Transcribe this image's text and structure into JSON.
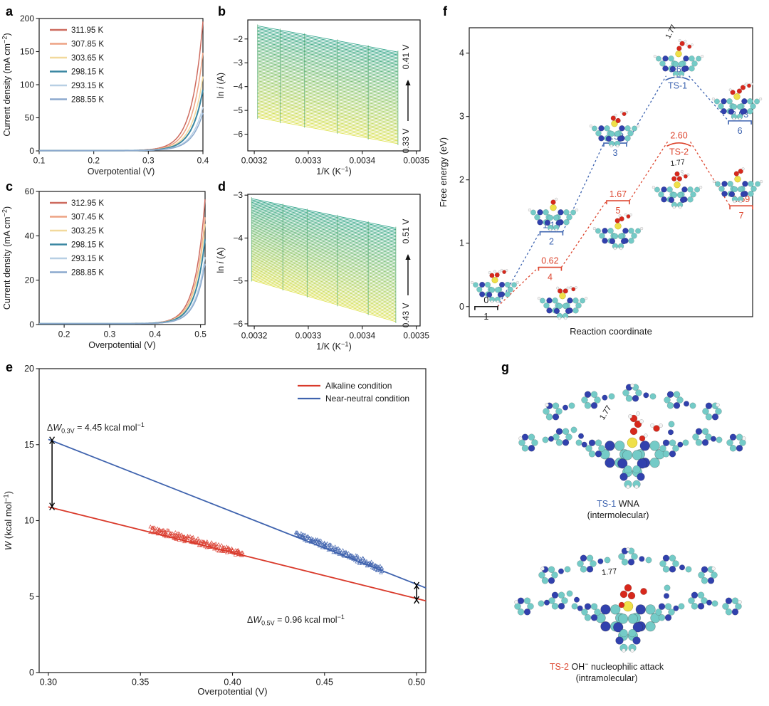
{
  "panels": {
    "a": "a",
    "b": "b",
    "c": "c",
    "d": "d",
    "e": "e",
    "f": "f",
    "g": "g"
  },
  "colors": {
    "axis": "#1a1a1a",
    "e_red": "#d93a2b",
    "e_blue": "#3f63ae",
    "f_blue": "#3e64b0",
    "f_red": "#dd4730",
    "f_black": "#1a1a1a",
    "atom_C": "#74cbc7",
    "atom_N": "#3141ad",
    "atom_O": "#d7281c",
    "atom_H": "#f4f4f4",
    "atom_M": "#efe049"
  },
  "chart_data": [
    {
      "id": "a",
      "type": "polarization",
      "xlabel_parts": [
        {
          "t": "Overpotential (V)"
        }
      ],
      "ylabel_parts": [
        {
          "t": "Current density (mA cm"
        },
        {
          "t": "−2",
          "sup": true
        },
        {
          "t": ")"
        }
      ],
      "xlim": [
        0.1,
        0.4
      ],
      "ylim": [
        0,
        200
      ],
      "xticks": [
        {
          "v": 0.1,
          "l": "0.1"
        },
        {
          "v": 0.2,
          "l": "0.2"
        },
        {
          "v": 0.3,
          "l": "0.3"
        },
        {
          "v": 0.4,
          "l": "0.4"
        }
      ],
      "yticks": [
        {
          "v": 0,
          "l": "0"
        },
        {
          "v": 50,
          "l": "50"
        },
        {
          "v": 100,
          "l": "100"
        },
        {
          "v": 150,
          "l": "150"
        },
        {
          "v": 200,
          "l": "200"
        }
      ],
      "series": [
        {
          "name": "311.95 K",
          "color": "#cd6a5e",
          "end": 195,
          "lw": 1.5
        },
        {
          "name": "307.85 K",
          "color": "#eda283",
          "end": 148,
          "lw": 1.5
        },
        {
          "name": "303.65 K",
          "color": "#f2d99c",
          "end": 112,
          "lw": 1.5
        },
        {
          "name": "298.15 K",
          "color": "#3a87a2",
          "end": 92,
          "lw": 2
        },
        {
          "name": "293.15 K",
          "color": "#b7cfe4",
          "end": 66,
          "lw": 1.5
        },
        {
          "name": "288.55 K",
          "color": "#8ba9cd",
          "end": 57,
          "lw": 1.5
        }
      ],
      "model": {
        "vref": 0.4,
        "b": 0.0205
      }
    },
    {
      "id": "b",
      "type": "fan",
      "xlabel_parts": [
        {
          "t": "1/K (K"
        },
        {
          "t": "−1",
          "sup": true
        },
        {
          "t": ")"
        }
      ],
      "ylabel_parts": [
        {
          "t": "ln "
        },
        {
          "t": "i",
          "i": true
        },
        {
          "t": " (A)"
        }
      ],
      "xlim": [
        0.003188,
        0.003507
      ],
      "ylim": [
        -6.7,
        -1.2
      ],
      "xticks": [
        {
          "v": 0.0032,
          "l": "0.0032"
        },
        {
          "v": 0.0033,
          "l": "0.0033"
        },
        {
          "v": 0.0034,
          "l": "0.0034"
        },
        {
          "v": 0.0035,
          "l": "0.0035"
        }
      ],
      "yticks": [
        {
          "v": -2,
          "l": "−2"
        },
        {
          "v": -3,
          "l": "−3"
        },
        {
          "v": -4,
          "l": "−4"
        },
        {
          "v": -5,
          "l": "−5"
        },
        {
          "v": -6,
          "l": "−6"
        }
      ],
      "band": {
        "n": 66,
        "x0": 0.003206,
        "x1": 0.003466,
        "top_left": -1.45,
        "top_right": -2.55,
        "bot_left": -5.3,
        "bot_right": -6.4,
        "color_top": "#2aa287",
        "color_bottom": "#dde14b"
      },
      "temp_marks": [
        0.003206,
        0.003248,
        0.003293,
        0.003354,
        0.003411,
        0.003466
      ],
      "arrow": {
        "top_label": "0.41 V",
        "bottom_label": "0.33 V"
      }
    },
    {
      "id": "c",
      "type": "polarization",
      "xlabel_parts": [
        {
          "t": "Overpotential (V)"
        }
      ],
      "ylabel_parts": [
        {
          "t": "Current density (mA cm"
        },
        {
          "t": "−2",
          "sup": true
        },
        {
          "t": ")"
        }
      ],
      "xlim": [
        0.145,
        0.51
      ],
      "ylim": [
        0,
        60
      ],
      "xticks": [
        {
          "v": 0.2,
          "l": "0.2"
        },
        {
          "v": 0.3,
          "l": "0.3"
        },
        {
          "v": 0.4,
          "l": "0.4"
        },
        {
          "v": 0.5,
          "l": "0.5"
        }
      ],
      "yticks": [
        {
          "v": 0,
          "l": "0"
        },
        {
          "v": 20,
          "l": "20"
        },
        {
          "v": 40,
          "l": "40"
        },
        {
          "v": 60,
          "l": "60"
        }
      ],
      "series": [
        {
          "name": "312.95 K",
          "color": "#cd6a5e",
          "end": 56,
          "lw": 1.5
        },
        {
          "name": "307.45 K",
          "color": "#eda283",
          "end": 48,
          "lw": 1.5
        },
        {
          "name": "303.25 K",
          "color": "#f2d99c",
          "end": 45,
          "lw": 1.5
        },
        {
          "name": "298.15 K",
          "color": "#3a87a2",
          "end": 38,
          "lw": 2
        },
        {
          "name": "293.15 K",
          "color": "#b7cfe4",
          "end": 30,
          "lw": 1.5
        },
        {
          "name": "288.85 K",
          "color": "#8ba9cd",
          "end": 27,
          "lw": 1.5
        }
      ],
      "model": {
        "vref": 0.51,
        "b": 0.022
      }
    },
    {
      "id": "d",
      "type": "fan",
      "xlabel_parts": [
        {
          "t": "1/K (K"
        },
        {
          "t": "−1",
          "sup": true
        },
        {
          "t": ")"
        }
      ],
      "ylabel_parts": [
        {
          "t": "ln "
        },
        {
          "t": "i",
          "i": true
        },
        {
          "t": " (A)"
        }
      ],
      "xlim": [
        0.003188,
        0.003507
      ],
      "ylim": [
        -6.05,
        -2.98
      ],
      "xticks": [
        {
          "v": 0.0032,
          "l": "0.0032"
        },
        {
          "v": 0.0033,
          "l": "0.0033"
        },
        {
          "v": 0.0034,
          "l": "0.0034"
        },
        {
          "v": 0.0035,
          "l": "0.0035"
        }
      ],
      "yticks": [
        {
          "v": -3,
          "l": "−3"
        },
        {
          "v": -4,
          "l": "−4"
        },
        {
          "v": -5,
          "l": "−5"
        },
        {
          "v": -6,
          "l": "−6"
        }
      ],
      "band": {
        "n": 66,
        "x0": 0.003195,
        "x1": 0.003462,
        "top_left": -3.08,
        "top_right": -3.77,
        "bot_left": -4.98,
        "bot_right": -5.95,
        "color_top": "#2aa287",
        "color_bottom": "#dde14b"
      },
      "temp_marks": [
        0.003195,
        0.003253,
        0.003298,
        0.003354,
        0.003411,
        0.003462
      ],
      "arrow": {
        "top_label": "0.51 V",
        "bottom_label": "0.43 V"
      }
    },
    {
      "id": "e",
      "type": "scatterline",
      "xlabel_parts": [
        {
          "t": "Overpotential (V)"
        }
      ],
      "ylabel_parts": [
        {
          "t": "W",
          "i": true
        },
        {
          "t": " (kcal mol"
        },
        {
          "t": "−1",
          "sup": true
        },
        {
          "t": ")"
        }
      ],
      "xlim": [
        0.295,
        0.505
      ],
      "ylim": [
        0,
        20
      ],
      "xticks": [
        {
          "v": 0.3,
          "l": "0.30"
        },
        {
          "v": 0.35,
          "l": "0.35"
        },
        {
          "v": 0.4,
          "l": "0.40"
        },
        {
          "v": 0.45,
          "l": "0.45"
        },
        {
          "v": 0.5,
          "l": "0.50"
        }
      ],
      "yticks": [
        {
          "v": 0,
          "l": "0"
        },
        {
          "v": 5,
          "l": "5"
        },
        {
          "v": 10,
          "l": "10"
        },
        {
          "v": 15,
          "l": "15"
        },
        {
          "v": 20,
          "l": "20"
        }
      ],
      "series": [
        {
          "name": "Alkaline condition",
          "color": "#d93a2b",
          "x0": 0.3,
          "y0": 10.9,
          "x1": 0.505,
          "y1": 4.72,
          "cluster": [
            0.356,
            0.405
          ]
        },
        {
          "name": "Near-neutral condition",
          "color": "#3f63ae",
          "x0": 0.3,
          "y0": 15.35,
          "x1": 0.505,
          "y1": 5.57,
          "cluster": [
            0.435,
            0.481
          ]
        }
      ],
      "brackets": [
        {
          "x": 0.302,
          "ylo": 10.93,
          "yhi": 15.28
        },
        {
          "x": 0.5,
          "ylo": 4.78,
          "yhi": 5.72
        }
      ]
    },
    {
      "id": "f",
      "type": "energy",
      "xlabel_parts": [
        {
          "t": "Reaction coordinate"
        }
      ],
      "ylabel_parts": [
        {
          "t": "Free energy (eV)"
        }
      ],
      "ylim": [
        -0.16,
        4.4
      ],
      "yticks": [
        {
          "v": 0,
          "l": "0"
        },
        {
          "v": 1,
          "l": "1"
        },
        {
          "v": 2,
          "l": "2"
        },
        {
          "v": 3,
          "l": "3"
        },
        {
          "v": 4,
          "l": "4"
        }
      ],
      "states": [
        {
          "id": "1",
          "value": "0",
          "name": "1",
          "E": 0,
          "xf": 0.06,
          "color": "#1a1a1a",
          "ts": false
        },
        {
          "id": "2",
          "value": "1.18",
          "name": "2",
          "E": 1.18,
          "xf": 0.29,
          "color": "#3e64b0",
          "ts": false
        },
        {
          "id": "3",
          "value": "2.58",
          "name": "3",
          "E": 2.58,
          "xf": 0.515,
          "color": "#3e64b0",
          "ts": false
        },
        {
          "id": "TS-1",
          "value": "3.64",
          "name": "TS-1",
          "E": 3.64,
          "xf": 0.735,
          "color": "#3e64b0",
          "ts": true
        },
        {
          "id": "6",
          "value": "2.93",
          "name": "6",
          "E": 2.93,
          "xf": 0.955,
          "color": "#3e64b0",
          "ts": false
        },
        {
          "id": "4",
          "value": "0.62",
          "name": "4",
          "E": 0.62,
          "xf": 0.285,
          "color": "#dd4730",
          "ts": false
        },
        {
          "id": "5",
          "value": "1.67",
          "name": "5",
          "E": 1.67,
          "xf": 0.525,
          "color": "#dd4730",
          "ts": false
        },
        {
          "id": "TS-2",
          "value": "2.60",
          "name": "TS-2",
          "E": 2.6,
          "xf": 0.74,
          "color": "#dd4730",
          "ts": true
        },
        {
          "id": "7",
          "value": "1.59",
          "name": "7",
          "E": 1.59,
          "xf": 0.96,
          "color": "#dd4730",
          "ts": false
        }
      ],
      "paths": [
        {
          "color": "#3e64b0",
          "states": [
            "1",
            "2",
            "3",
            "TS-1",
            "6"
          ]
        },
        {
          "color": "#dd4730",
          "states": [
            "1",
            "4",
            "5",
            "TS-2",
            "7"
          ]
        }
      ],
      "bond_labels": [
        {
          "t": "1.77",
          "x": 330,
          "y": 46,
          "rot": -62
        },
        {
          "t": "1.77",
          "x": 337,
          "y": 232,
          "rot": -6
        }
      ]
    }
  ],
  "annotations_e": {
    "a1": {
      "delta": "Δ",
      "sym": "W",
      "sub": "0.3V",
      "mid": " = 4.45 kcal mol",
      "sup": "−1"
    },
    "a2": {
      "delta": "Δ",
      "sym": "W",
      "sub": "0.5V",
      "mid": " = 0.96 kcal mol",
      "sup": "−1"
    }
  },
  "panel_g": {
    "caption1": {
      "ts": "TS-1",
      "rest": " WNA",
      "line2": "(intermolecular)"
    },
    "caption2": {
      "ts": "TS-2",
      "pre": " OH",
      "sup": "−",
      "rest": " nucleophilic attack",
      "line2": "(intramolecular)"
    },
    "bond_top": "1.77",
    "bond_bottom": "1.77"
  }
}
